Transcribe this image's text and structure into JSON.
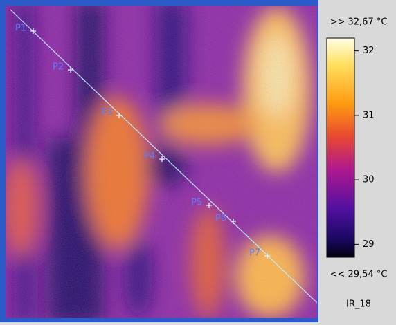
{
  "image": {
    "points": [
      "P1",
      "P2",
      "P3",
      "P4",
      "P5",
      "P6",
      "P7"
    ]
  },
  "colorbar": {
    "max_label": ">> 32,67 °C",
    "min_label": "<< 29,54 °C",
    "lim": [
      28.8,
      32.2
    ],
    "ticks": [
      29,
      30,
      31,
      32
    ]
  },
  "image_name": "IR_18"
}
